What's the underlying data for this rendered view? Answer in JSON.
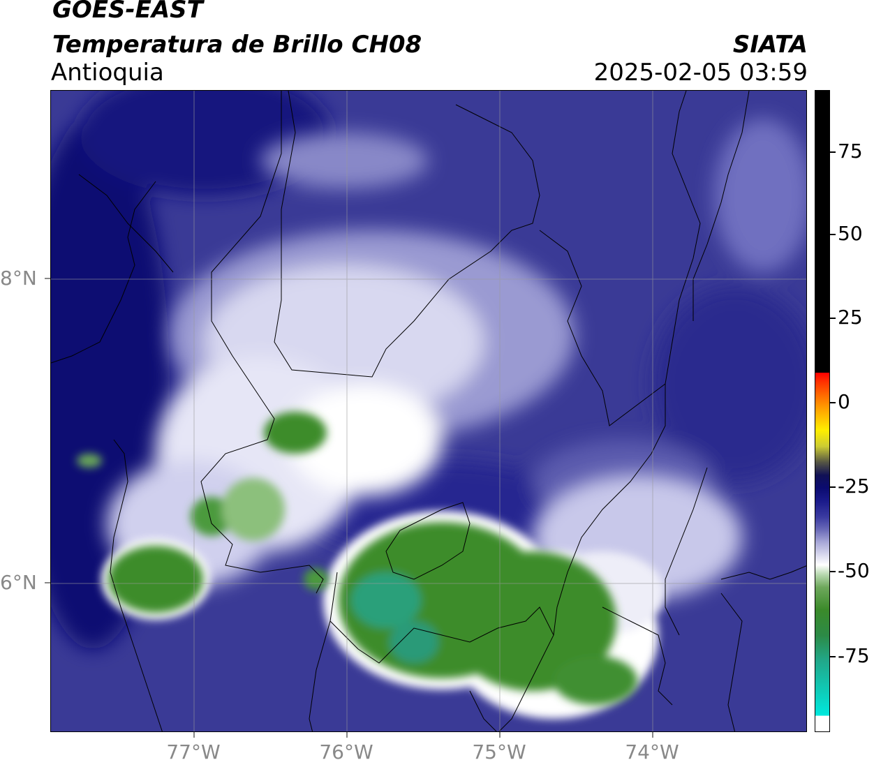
{
  "title": {
    "satellite": "GOES-EAST",
    "product": "Temperatura de Brillo CH08",
    "region": "Antioquia",
    "agency": "SIATA",
    "timestamp": "2025-02-05 03:59"
  },
  "map": {
    "lat_labels": [
      "8°N",
      "6°N"
    ],
    "lon_labels": [
      "77°W",
      "76°W",
      "75°W",
      "74°W"
    ],
    "extent": {
      "lon_min": -77.94,
      "lon_max": -73.0,
      "lat_min": 5.0,
      "lat_max": 9.22
    },
    "gridlines": true
  },
  "colorbar": {
    "ticks": [
      "75",
      "50",
      "25",
      "0",
      "-25",
      "-50",
      "-75"
    ],
    "range": [
      -95,
      90
    ],
    "colors": {
      "hot": "#000000",
      "warm_red": "#ff0000",
      "yellow": "#ffee00",
      "cold_blue": "#1a1a8a",
      "mid_white": "#ffffff",
      "green": "#3b8a2a",
      "cyan": "#00e8dd"
    }
  }
}
